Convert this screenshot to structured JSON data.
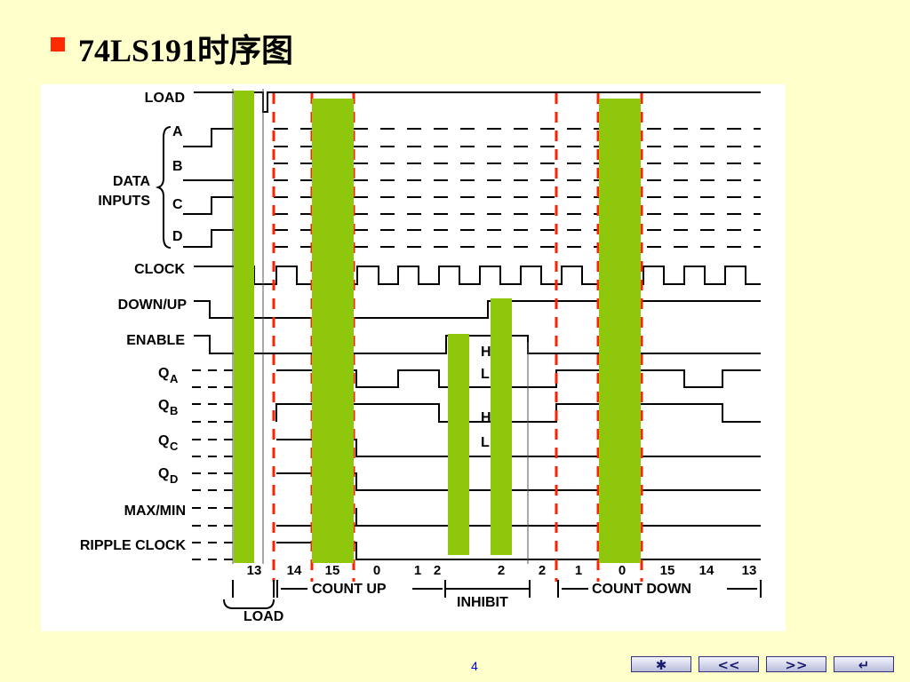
{
  "slide": {
    "title": "74LS191时序图",
    "page_number": "4"
  },
  "diagram": {
    "signal_labels": {
      "load": "LOAD",
      "data_inputs_line1": "DATA",
      "data_inputs_line2": "INPUTS",
      "a": "A",
      "b": "B",
      "c": "C",
      "d": "D",
      "clock": "CLOCK",
      "down_up": "DOWN/UP",
      "enable": "ENABLE",
      "qa": "Q",
      "qa_sub": "A",
      "qb": "Q",
      "qb_sub": "B",
      "qc": "Q",
      "qc_sub": "C",
      "qd": "Q",
      "qd_sub": "D",
      "max_min": "MAX/MIN",
      "ripple_clock": "RIPPLE CLOCK"
    },
    "level_marks": {
      "h1": "H",
      "l1": "L",
      "h2": "H",
      "l2": "L"
    },
    "count_values": [
      "13",
      "14",
      "15",
      "0",
      "1",
      "2",
      "2",
      "2",
      "1",
      "0",
      "15",
      "14",
      "13"
    ],
    "phases": {
      "load": "LOAD",
      "count_up": "COUNT UP",
      "inhibit": "INHIBIT",
      "count_down": "COUNT DOWN"
    },
    "colors": {
      "highlight_bar": "#8ec70c",
      "boundary_dash": "#ff2200",
      "waveform": "#000000"
    }
  },
  "nav": {
    "star": "✱",
    "prev": "<<",
    "next": ">>",
    "return": "↵"
  }
}
